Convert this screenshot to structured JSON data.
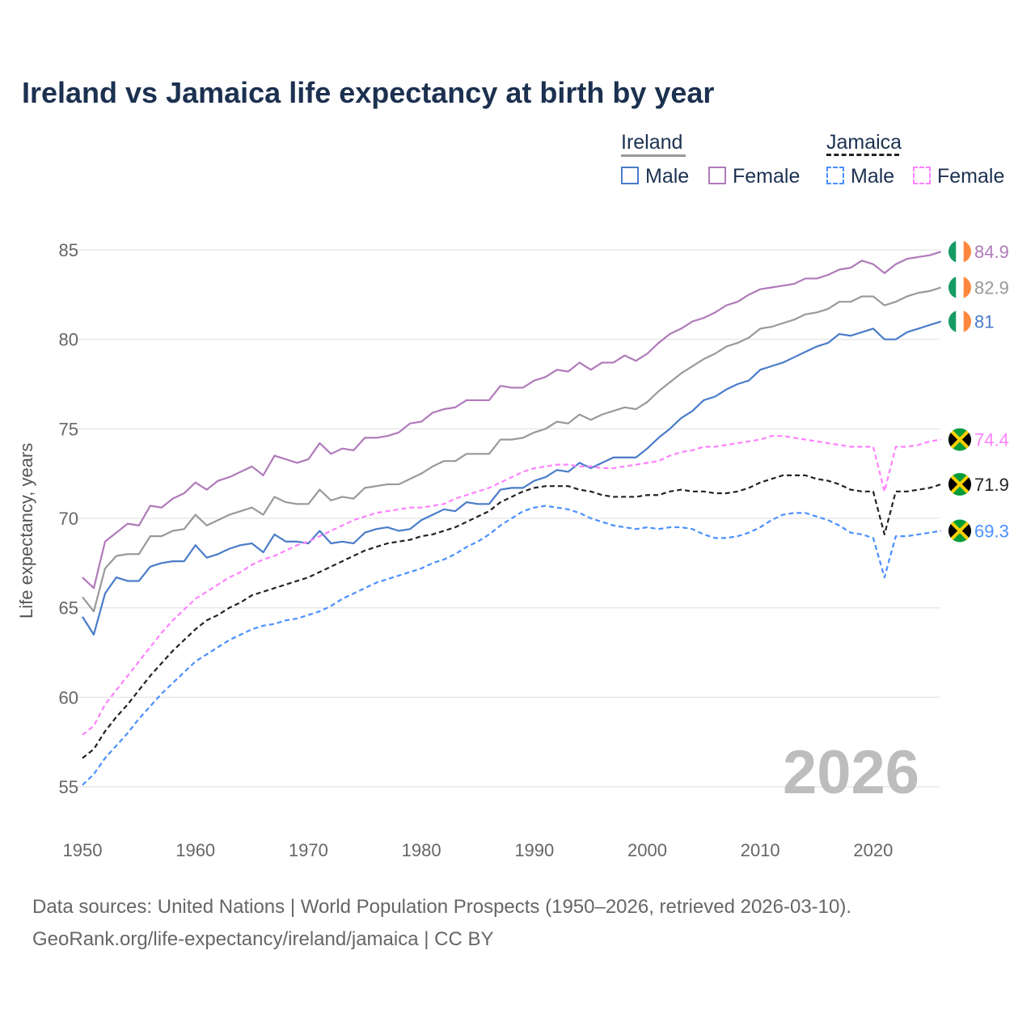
{
  "title": "Ireland vs Jamaica life expectancy at birth by year",
  "legend": {
    "groups": [
      {
        "label": "Ireland",
        "items": [
          "Male",
          "Female"
        ]
      },
      {
        "label": "Jamaica",
        "items": [
          "Male",
          "Female"
        ]
      }
    ]
  },
  "year_watermark": "2026",
  "source_line1": "Data sources: United Nations | World Population Prospects (1950–2026, retrieved 2026-03-10).",
  "source_line2": "GeoRank.org/life-expectancy/ireland/jamaica | CC BY",
  "chart_data": {
    "type": "line",
    "ylabel": "Life expectancy, years",
    "ylim": [
      53,
      86.5
    ],
    "xlim": [
      1950,
      2026
    ],
    "yticks": [
      55,
      60,
      65,
      70,
      75,
      80,
      85
    ],
    "xticks": [
      1950,
      1960,
      1970,
      1980,
      1990,
      2000,
      2010,
      2020
    ],
    "x_start": 1950,
    "series": [
      {
        "name": "Ireland Female",
        "color": "#b07aba",
        "dash": false,
        "flag": "ireland",
        "end_label": "84.9",
        "values": [
          66.7,
          66.1,
          68.7,
          69.2,
          69.7,
          69.6,
          70.7,
          70.6,
          71.1,
          71.4,
          72.0,
          71.6,
          72.1,
          72.3,
          72.6,
          72.9,
          72.4,
          73.5,
          73.3,
          73.1,
          73.3,
          74.2,
          73.6,
          73.9,
          73.8,
          74.5,
          74.5,
          74.6,
          74.8,
          75.3,
          75.4,
          75.9,
          76.1,
          76.2,
          76.6,
          76.6,
          76.6,
          77.4,
          77.3,
          77.3,
          77.7,
          77.9,
          78.3,
          78.2,
          78.7,
          78.3,
          78.7,
          78.7,
          79.1,
          78.8,
          79.2,
          79.8,
          80.3,
          80.6,
          81.0,
          81.2,
          81.5,
          81.9,
          82.1,
          82.5,
          82.8,
          82.9,
          83.0,
          83.1,
          83.4,
          83.4,
          83.6,
          83.9,
          84.0,
          84.4,
          84.2,
          83.7,
          84.2,
          84.5,
          84.6,
          84.7,
          84.9
        ]
      },
      {
        "name": "Ireland",
        "color": "#999999",
        "dash": false,
        "flag": "ireland",
        "end_label": "82.9",
        "values": [
          65.6,
          64.8,
          67.2,
          67.9,
          68.0,
          68.0,
          69.0,
          69.0,
          69.3,
          69.4,
          70.2,
          69.6,
          69.9,
          70.2,
          70.4,
          70.6,
          70.2,
          71.2,
          70.9,
          70.8,
          70.8,
          71.6,
          71.0,
          71.2,
          71.1,
          71.7,
          71.8,
          71.9,
          71.9,
          72.2,
          72.5,
          72.9,
          73.2,
          73.2,
          73.6,
          73.6,
          73.6,
          74.4,
          74.4,
          74.5,
          74.8,
          75.0,
          75.4,
          75.3,
          75.8,
          75.5,
          75.8,
          76.0,
          76.2,
          76.1,
          76.5,
          77.1,
          77.6,
          78.1,
          78.5,
          78.9,
          79.2,
          79.6,
          79.8,
          80.1,
          80.6,
          80.7,
          80.9,
          81.1,
          81.4,
          81.5,
          81.7,
          82.1,
          82.1,
          82.4,
          82.4,
          81.9,
          82.1,
          82.4,
          82.6,
          82.7,
          82.9
        ]
      },
      {
        "name": "Ireland Male",
        "color": "#4a7cc9",
        "dash": false,
        "flag": "ireland",
        "end_label": "81",
        "values": [
          64.5,
          63.5,
          65.8,
          66.7,
          66.5,
          66.5,
          67.3,
          67.5,
          67.6,
          67.6,
          68.5,
          67.8,
          68.0,
          68.3,
          68.5,
          68.6,
          68.1,
          69.1,
          68.7,
          68.7,
          68.6,
          69.3,
          68.6,
          68.7,
          68.6,
          69.2,
          69.4,
          69.5,
          69.3,
          69.4,
          69.9,
          70.2,
          70.5,
          70.4,
          70.9,
          70.8,
          70.8,
          71.6,
          71.7,
          71.7,
          72.1,
          72.3,
          72.7,
          72.6,
          73.1,
          72.8,
          73.1,
          73.4,
          73.4,
          73.4,
          73.9,
          74.5,
          75.0,
          75.6,
          76.0,
          76.6,
          76.8,
          77.2,
          77.5,
          77.7,
          78.3,
          78.5,
          78.7,
          79.0,
          79.3,
          79.6,
          79.8,
          80.3,
          80.2,
          80.4,
          80.6,
          80.0,
          80.0,
          80.4,
          80.6,
          80.8,
          81.0
        ]
      },
      {
        "name": "Jamaica Female",
        "color": "#ff80ff",
        "dash": true,
        "flag": "jamaica",
        "end_label": "74.4",
        "values": [
          57.9,
          58.4,
          59.6,
          60.4,
          61.2,
          62.0,
          62.8,
          63.6,
          64.3,
          64.9,
          65.5,
          65.9,
          66.3,
          66.7,
          67.0,
          67.4,
          67.7,
          67.9,
          68.2,
          68.5,
          68.7,
          69.0,
          69.3,
          69.6,
          69.9,
          70.1,
          70.3,
          70.4,
          70.5,
          70.6,
          70.6,
          70.7,
          70.8,
          71.1,
          71.3,
          71.5,
          71.7,
          72.0,
          72.3,
          72.6,
          72.8,
          72.9,
          73.0,
          73.0,
          72.9,
          72.9,
          72.8,
          72.8,
          72.9,
          73.0,
          73.1,
          73.2,
          73.5,
          73.7,
          73.8,
          74.0,
          74.0,
          74.1,
          74.2,
          74.3,
          74.4,
          74.6,
          74.6,
          74.5,
          74.4,
          74.3,
          74.2,
          74.1,
          74.0,
          74.0,
          74.0,
          71.5,
          74.0,
          74.0,
          74.1,
          74.3,
          74.4
        ]
      },
      {
        "name": "Jamaica",
        "color": "#222222",
        "dash": true,
        "flag": "jamaica",
        "end_label": "71.9",
        "values": [
          56.6,
          57.1,
          58.1,
          58.9,
          59.6,
          60.4,
          61.2,
          61.9,
          62.6,
          63.2,
          63.8,
          64.3,
          64.6,
          65.0,
          65.3,
          65.7,
          65.9,
          66.1,
          66.3,
          66.5,
          66.7,
          67.0,
          67.3,
          67.6,
          67.9,
          68.2,
          68.4,
          68.6,
          68.7,
          68.8,
          69.0,
          69.1,
          69.3,
          69.5,
          69.8,
          70.1,
          70.4,
          70.9,
          71.2,
          71.5,
          71.7,
          71.8,
          71.8,
          71.8,
          71.6,
          71.5,
          71.3,
          71.2,
          71.2,
          71.2,
          71.3,
          71.3,
          71.5,
          71.6,
          71.5,
          71.5,
          71.4,
          71.4,
          71.5,
          71.7,
          72.0,
          72.2,
          72.4,
          72.4,
          72.4,
          72.2,
          72.1,
          71.9,
          71.6,
          71.5,
          71.5,
          69.1,
          71.5,
          71.5,
          71.6,
          71.7,
          71.9
        ]
      },
      {
        "name": "Jamaica Male",
        "color": "#4a90ff",
        "dash": true,
        "flag": "jamaica",
        "end_label": "69.3",
        "values": [
          55.1,
          55.7,
          56.6,
          57.3,
          58.0,
          58.8,
          59.5,
          60.2,
          60.8,
          61.4,
          62.0,
          62.4,
          62.8,
          63.2,
          63.5,
          63.8,
          64.0,
          64.1,
          64.3,
          64.4,
          64.6,
          64.8,
          65.1,
          65.5,
          65.8,
          66.1,
          66.4,
          66.6,
          66.8,
          67.0,
          67.2,
          67.5,
          67.7,
          68.0,
          68.4,
          68.7,
          69.1,
          69.6,
          70.0,
          70.4,
          70.6,
          70.7,
          70.6,
          70.5,
          70.3,
          70.0,
          69.8,
          69.6,
          69.5,
          69.4,
          69.5,
          69.4,
          69.5,
          69.5,
          69.4,
          69.1,
          68.9,
          68.9,
          69.0,
          69.2,
          69.5,
          69.9,
          70.2,
          70.3,
          70.3,
          70.1,
          69.9,
          69.6,
          69.2,
          69.1,
          68.9,
          66.7,
          69.0,
          69.0,
          69.1,
          69.2,
          69.3
        ]
      }
    ]
  }
}
